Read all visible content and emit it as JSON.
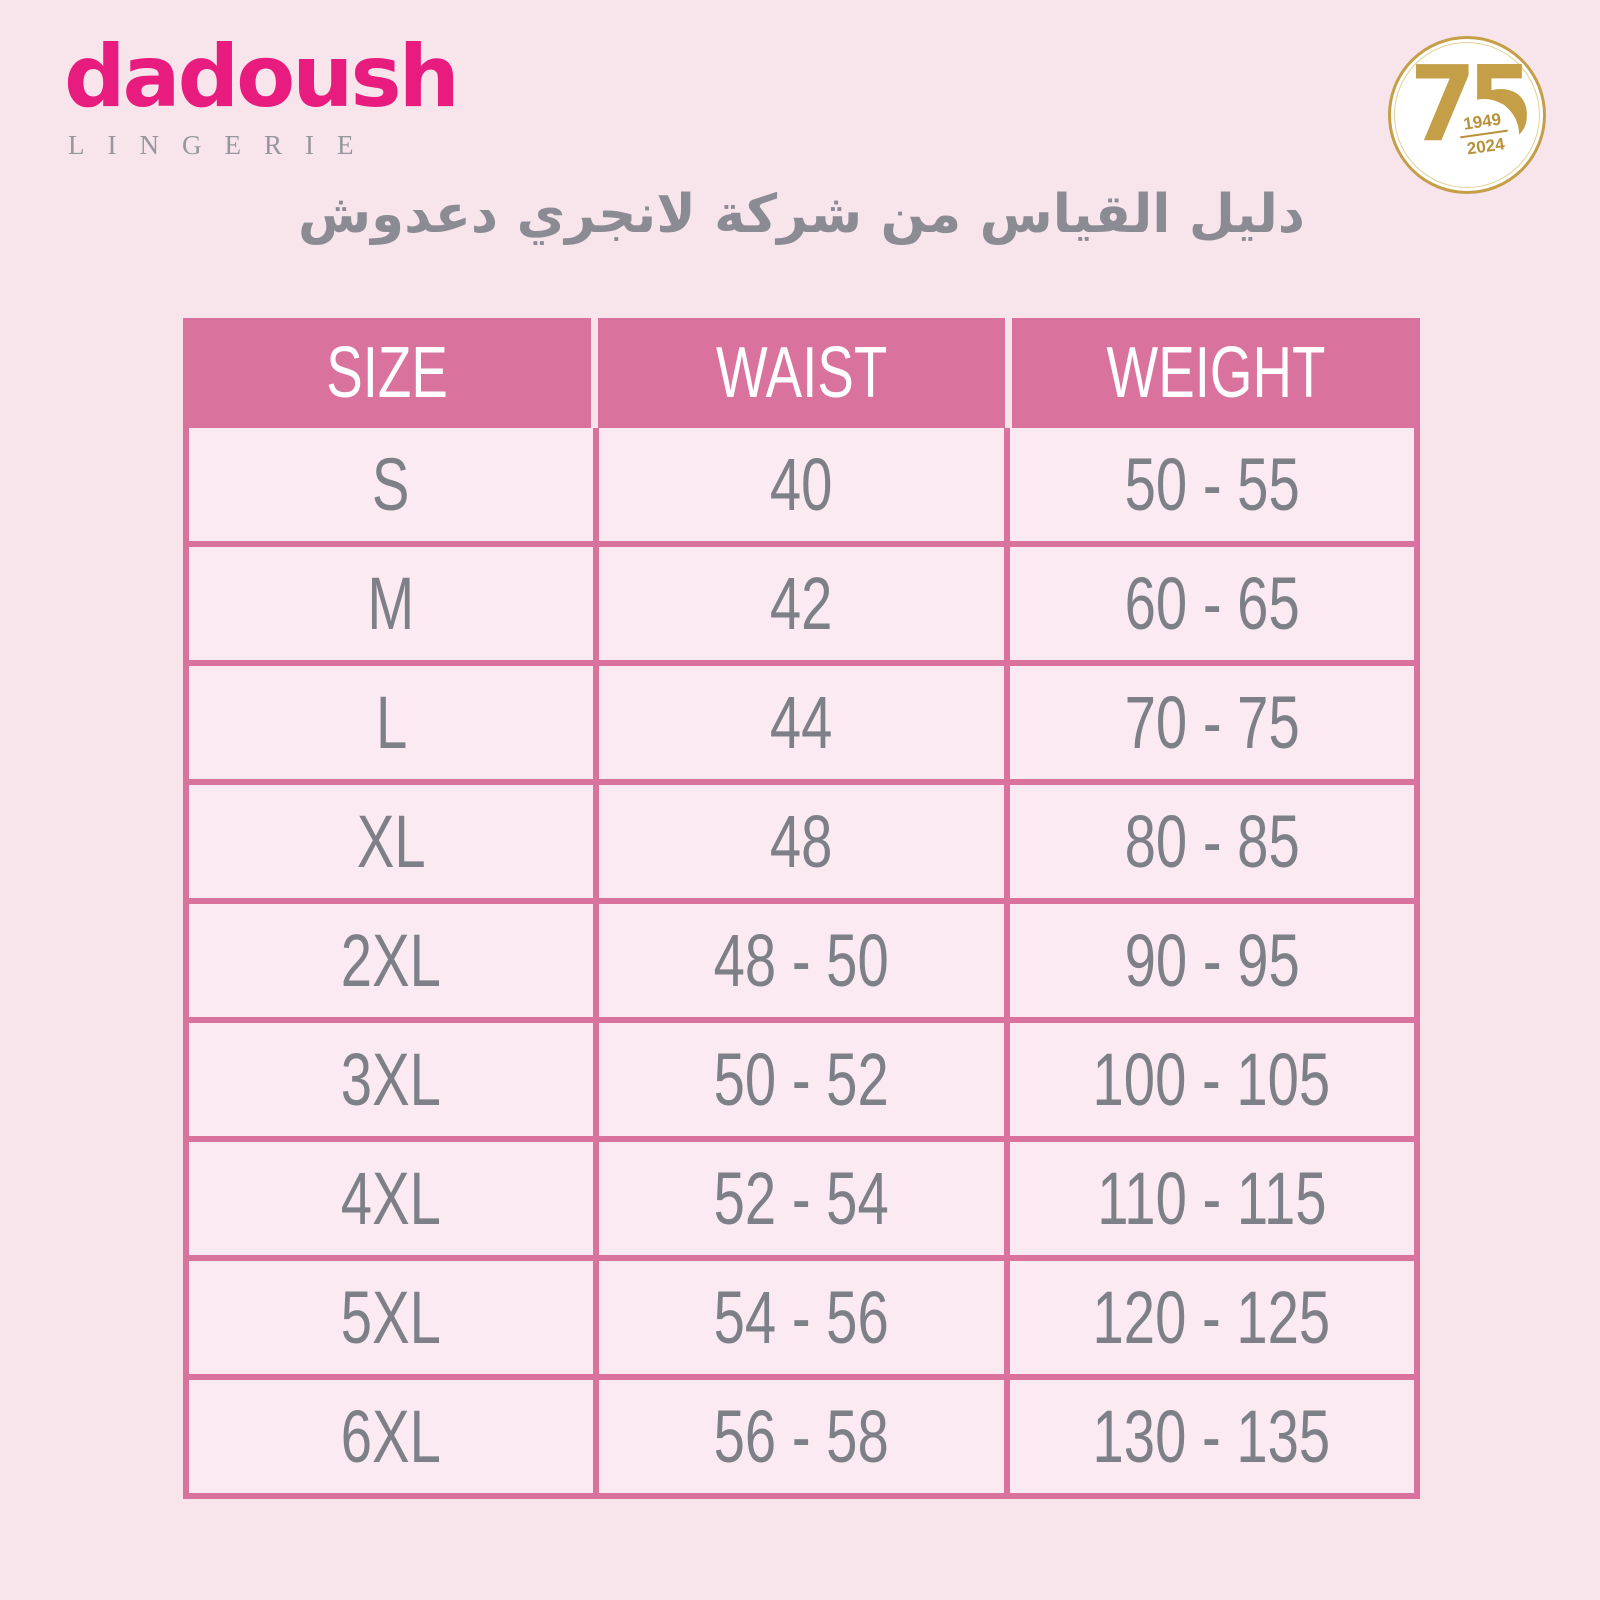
{
  "brand": {
    "name": "dadoush",
    "subtitle": "LINGERIE"
  },
  "badge": {
    "number": "75",
    "year_top": "1949",
    "year_bottom": "2024"
  },
  "title": "دليل القياس من شركة لانجري دعدوش",
  "table": {
    "headers": [
      "SIZE",
      "WAIST",
      "WEIGHT"
    ],
    "rows": [
      [
        "S",
        "40",
        "50 - 55"
      ],
      [
        "M",
        "42",
        "60 - 65"
      ],
      [
        "L",
        "44",
        "70 - 75"
      ],
      [
        "XL",
        "48",
        "80 - 85"
      ],
      [
        "2XL",
        "48 - 50",
        "90 - 95"
      ],
      [
        "3XL",
        "50 - 52",
        "100 - 105"
      ],
      [
        "4XL",
        "52 - 54",
        "110 - 115"
      ],
      [
        "5XL",
        "54 - 56",
        "120 - 125"
      ],
      [
        "6XL",
        "56 - 58",
        "130 - 135"
      ]
    ]
  },
  "colors": {
    "background": "#f8e5ec",
    "cell_background": "#fbeaf1",
    "table_pink": "#d9739e",
    "text_gray": "#7e8088",
    "brand_magenta": "#e81b7e",
    "badge_gold": "#c59f47"
  }
}
